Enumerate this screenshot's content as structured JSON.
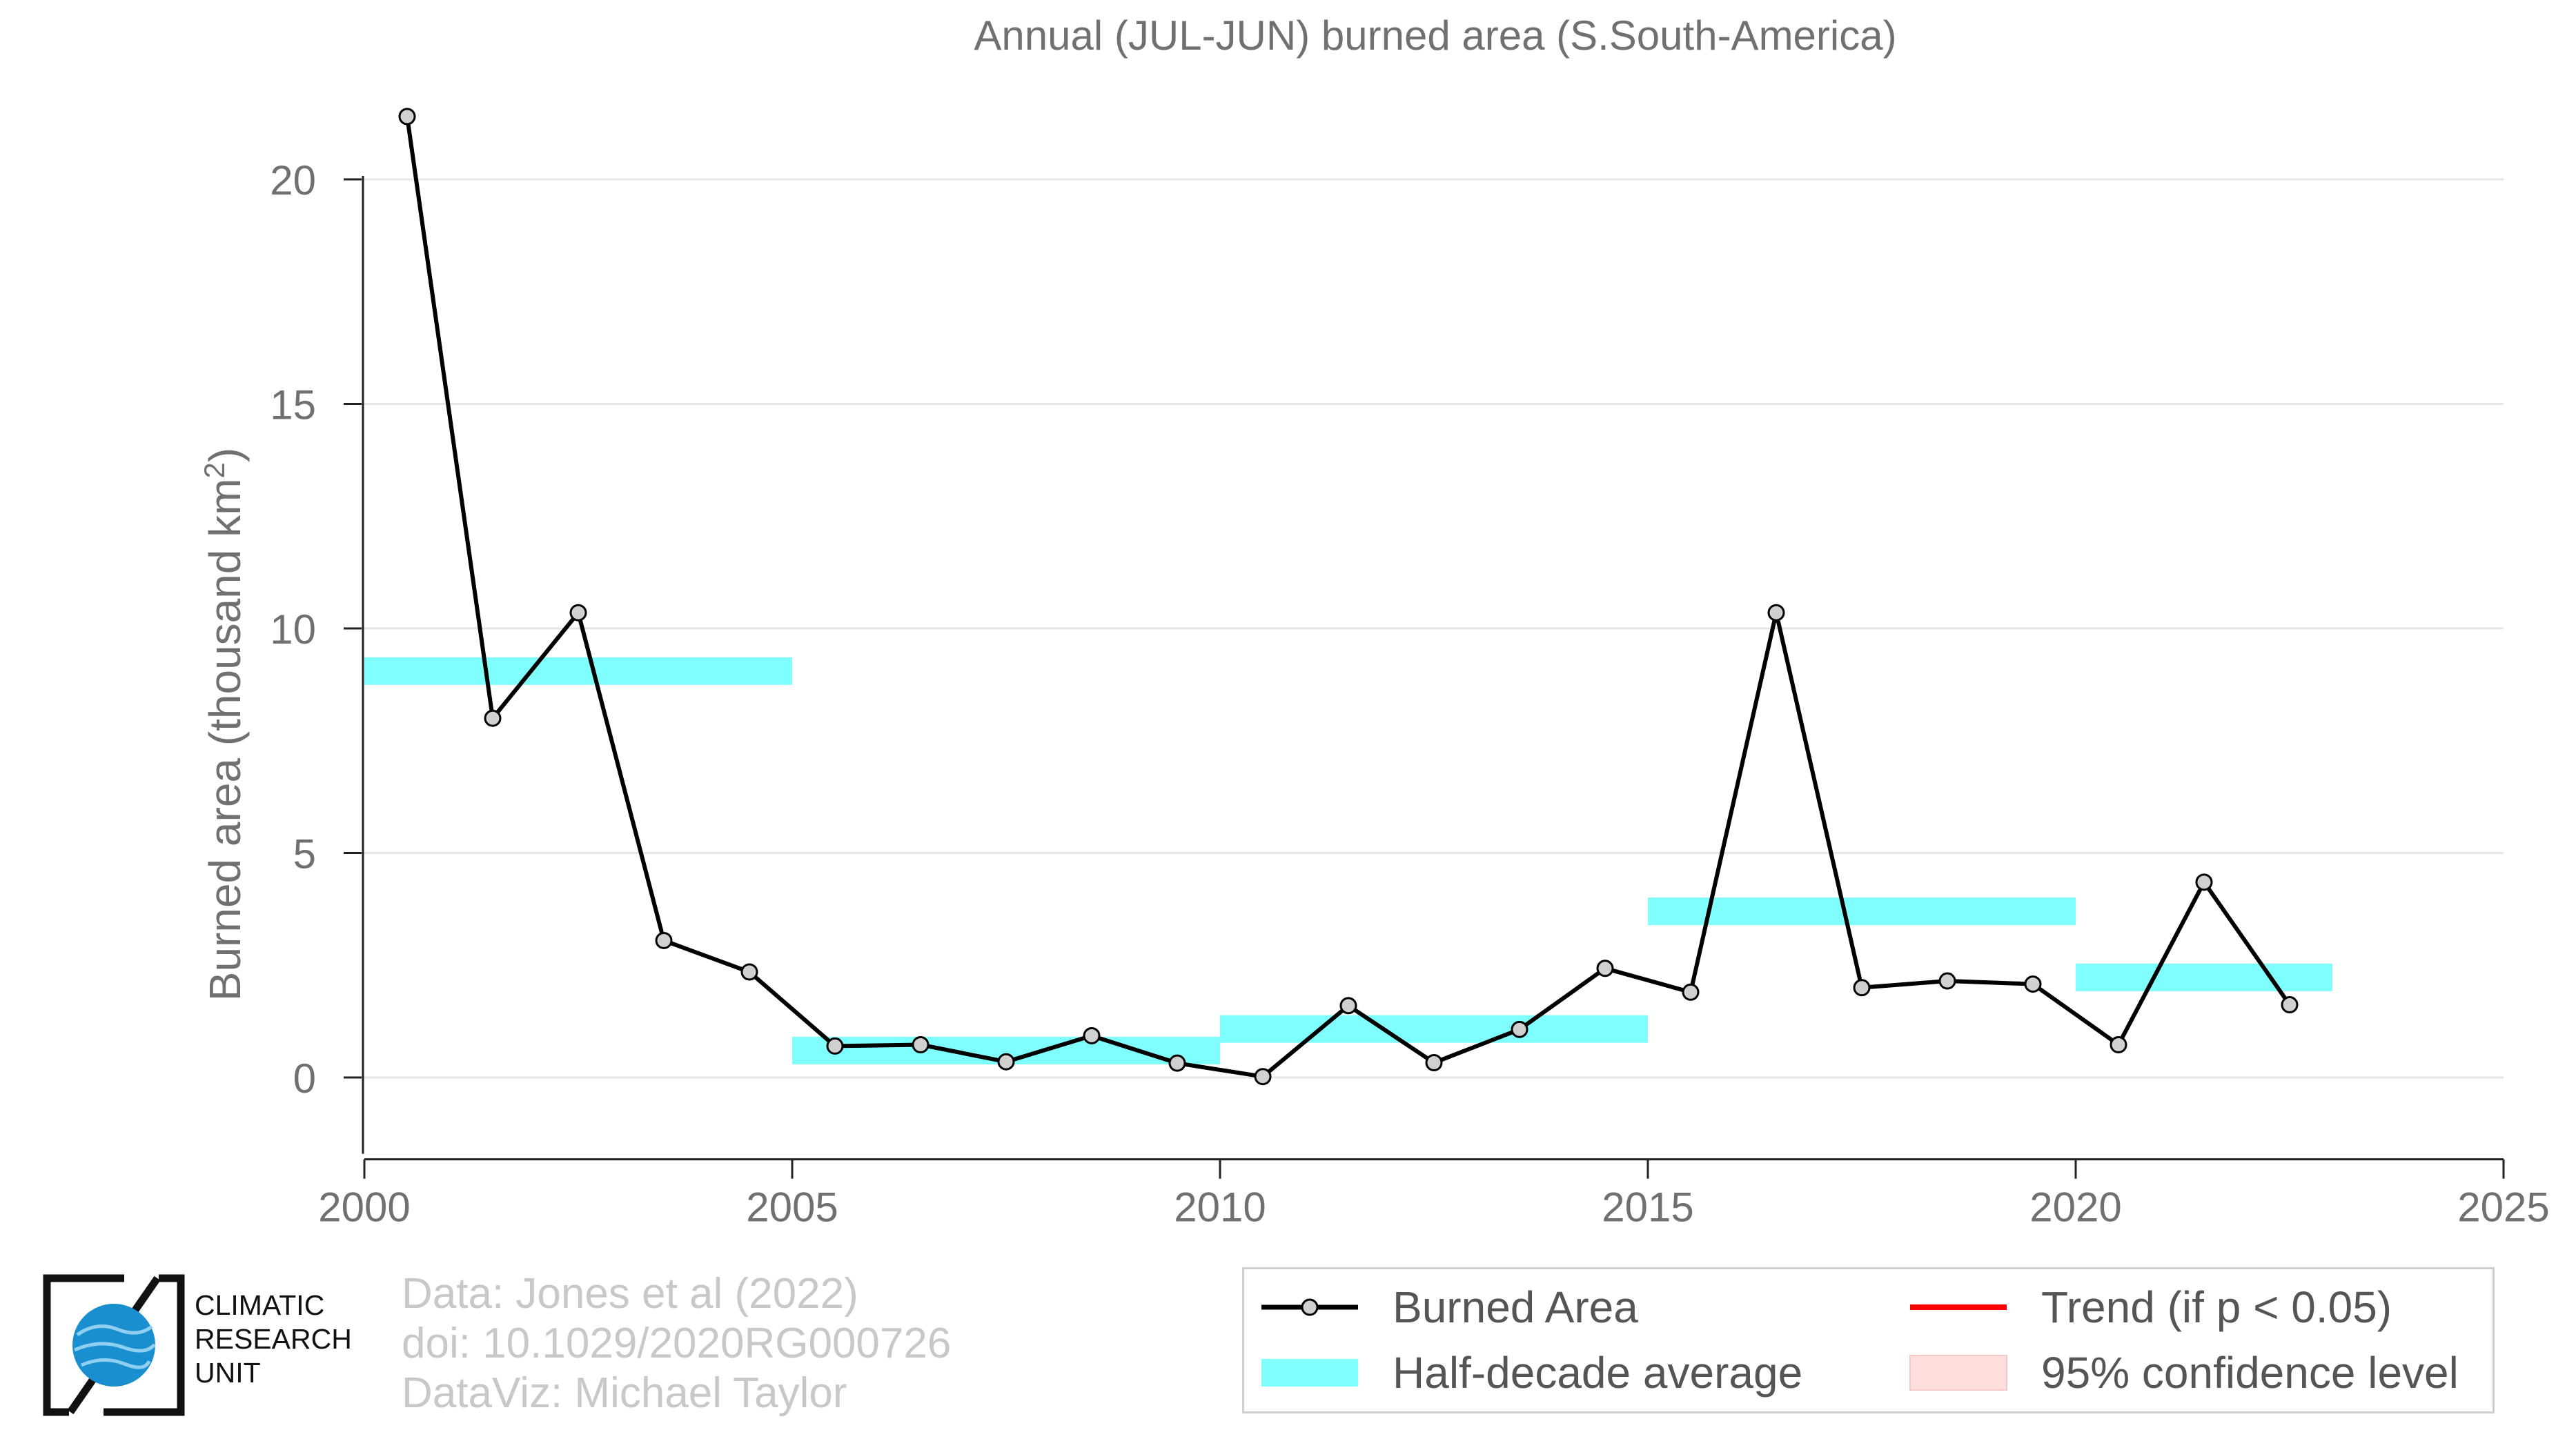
{
  "chart_data": {
    "type": "line",
    "title": "Annual (JUL-JUN) burned area (S.South-America)",
    "ylabel": "Burned area (thousand km²)",
    "xlabel": "",
    "xlim": [
      2000,
      2025
    ],
    "ylim": [
      -1.7,
      22.5
    ],
    "x_ticks": [
      2000,
      2005,
      2010,
      2015,
      2020,
      2025
    ],
    "y_ticks": [
      0,
      5,
      10,
      15,
      20
    ],
    "grid": "horizontal",
    "legend_position": "bottom-right",
    "series": [
      {
        "name": "Burned Area",
        "color": "#000000",
        "marker_color": "#d0d0d0",
        "x": [
          2000.5,
          2001.5,
          2002.5,
          2003.5,
          2004.5,
          2005.5,
          2006.5,
          2007.5,
          2008.5,
          2009.5,
          2010.5,
          2011.5,
          2012.5,
          2013.5,
          2014.5,
          2015.5,
          2016.5,
          2017.5,
          2018.5,
          2019.5,
          2020.5,
          2021.5,
          2022.5
        ],
        "values": [
          21.4,
          8.0,
          10.35,
          3.05,
          2.35,
          0.7,
          0.73,
          0.35,
          0.93,
          0.32,
          0.02,
          1.6,
          0.33,
          1.07,
          2.43,
          1.9,
          10.35,
          2.0,
          2.15,
          2.08,
          0.73,
          4.35,
          1.62
        ]
      }
    ],
    "half_decade_average": {
      "name": "Half-decade average",
      "color": "#80ffff",
      "segments": [
        {
          "x0": 2000,
          "x1": 2005,
          "value": 9.05
        },
        {
          "x0": 2005,
          "x1": 2010,
          "value": 0.6
        },
        {
          "x0": 2010,
          "x1": 2015,
          "value": 1.08
        },
        {
          "x0": 2015,
          "x1": 2020,
          "value": 3.7
        },
        {
          "x0": 2020,
          "x1": 2023,
          "value": 2.23
        }
      ]
    },
    "trend": {
      "name": "Trend (if p < 0.05)",
      "color": "#ff0000"
    },
    "confidence": {
      "name": "95% confidence level",
      "color": "#ffdddd"
    }
  },
  "credits": {
    "line1": "Data: Jones et al (2022)",
    "line2": "doi: 10.1029/2020RG000726",
    "line3": "DataViz: Michael Taylor"
  },
  "logo": {
    "icon": "cru-globe-icon",
    "line1": "CLIMATIC",
    "line2": "RESEARCH",
    "line3": "UNIT"
  }
}
